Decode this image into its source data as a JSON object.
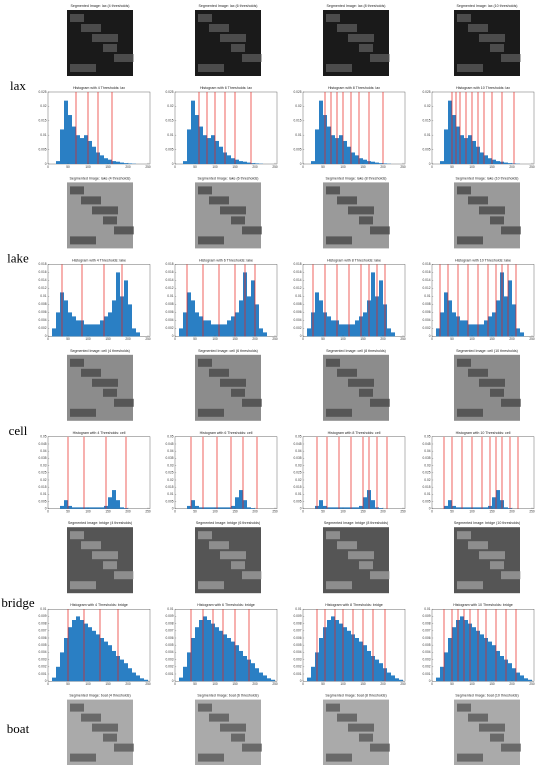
{
  "bar_color": "#2a7fc4",
  "threshold_color": "#e8201a",
  "rows": [
    {
      "label": "lax",
      "images": [
        "Segmented Image: lax (4 thresholds)",
        "Segmented Image: lax (6 thresholds)",
        "Segmented Image: lax (8 thresholds)",
        "Segmented Image: lax (10 thresholds)"
      ],
      "histogram": {
        "bins": [
          0,
          10,
          20,
          30,
          40,
          50,
          60,
          70,
          80,
          90,
          100,
          110,
          120,
          130,
          140,
          150,
          160,
          170,
          180,
          190,
          200,
          210,
          220,
          230,
          240,
          250
        ],
        "counts": [
          0,
          0,
          0.001,
          0.012,
          0.022,
          0.017,
          0.013,
          0.01,
          0.009,
          0.01,
          0.008,
          0.006,
          0.004,
          0.003,
          0.002,
          0.0015,
          0.001,
          0.0008,
          0.0005,
          0.0003,
          0.0002,
          0.0001,
          0,
          0,
          0
        ],
        "xlim": [
          0,
          255
        ],
        "xticks": [
          0,
          50,
          100,
          150,
          200,
          250
        ],
        "ylim": [
          0,
          0.025
        ],
        "yticks": [
          0,
          0.005,
          0.01,
          0.015,
          0.02,
          0.025
        ]
      },
      "panels": [
        {
          "title": "Histogram with 4 Thresholds: lax",
          "thresholds": [
            70,
            100,
            125,
            160
          ]
        },
        {
          "title": "Histogram with 6 Thresholds: lax",
          "thresholds": [
            60,
            80,
            100,
            125,
            150,
            190
          ]
        },
        {
          "title": "Histogram with 8 Thresholds: lax",
          "thresholds": [
            55,
            70,
            85,
            100,
            120,
            140,
            165,
            200
          ]
        },
        {
          "title": "Histogram with 10 Thresholds: lax",
          "thresholds": [
            50,
            60,
            70,
            85,
            100,
            115,
            130,
            150,
            175,
            205
          ]
        }
      ]
    },
    {
      "label": "lake",
      "images": [
        "Segmented Image: lake (4 thresholds)",
        "Segmented Image: lake (6 thresholds)",
        "Segmented Image: lake (8 thresholds)",
        "Segmented Image: lake (10 thresholds)"
      ],
      "histogram": {
        "bins": [
          0,
          10,
          20,
          30,
          40,
          50,
          60,
          70,
          80,
          90,
          100,
          110,
          120,
          130,
          140,
          150,
          160,
          170,
          180,
          190,
          200,
          210,
          220,
          230,
          240,
          250
        ],
        "counts": [
          0,
          0.002,
          0.006,
          0.011,
          0.009,
          0.006,
          0.005,
          0.004,
          0.004,
          0.003,
          0.003,
          0.003,
          0.003,
          0.004,
          0.005,
          0.006,
          0.009,
          0.016,
          0.01,
          0.014,
          0.008,
          0.002,
          0.001,
          0,
          0
        ],
        "xlim": [
          0,
          255
        ],
        "xticks": [
          0,
          50,
          100,
          150,
          200,
          250
        ],
        "ylim": [
          0,
          0.018
        ],
        "yticks": [
          0,
          0.002,
          0.004,
          0.006,
          0.008,
          0.01,
          0.012,
          0.014,
          0.016,
          0.018
        ]
      },
      "panels": [
        {
          "title": "Histogram with 4 Thresholds: lake",
          "thresholds": [
            35,
            85,
            140,
            185
          ]
        },
        {
          "title": "Histogram with 6 Thresholds: lake",
          "thresholds": [
            30,
            70,
            110,
            150,
            175,
            200
          ]
        },
        {
          "title": "Histogram with 8 Thresholds: lake",
          "thresholds": [
            25,
            55,
            85,
            115,
            145,
            165,
            185,
            205
          ]
        },
        {
          "title": "Histogram with 10 Thresholds: lake",
          "thresholds": [
            20,
            40,
            65,
            90,
            115,
            140,
            160,
            175,
            190,
            210
          ]
        }
      ]
    },
    {
      "label": "cell",
      "images": [
        "Segmented Image: cell (4 thresholds)",
        "Segmented Image: cell (6 thresholds)",
        "Segmented Image: cell (8 thresholds)",
        "Segmented Image: cell (10 thresholds)"
      ],
      "histogram": {
        "bins": [
          0,
          10,
          20,
          30,
          40,
          50,
          60,
          70,
          80,
          90,
          100,
          110,
          120,
          130,
          140,
          150,
          160,
          170,
          180,
          190,
          200,
          210,
          220,
          230,
          240,
          250
        ],
        "counts": [
          0,
          0,
          0,
          0.002,
          0.006,
          0.002,
          0.001,
          0.001,
          0.001,
          0.001,
          0.001,
          0.001,
          0.001,
          0.001,
          0.002,
          0.008,
          0.013,
          0.006,
          0.001,
          0.0005,
          0,
          0,
          0,
          0,
          0
        ],
        "xlim": [
          0,
          255
        ],
        "xticks": [
          0,
          50,
          100,
          150,
          200,
          250
        ],
        "ylim": [
          0,
          0.05
        ],
        "yticks": [
          0,
          0.005,
          0.01,
          0.015,
          0.02,
          0.025,
          0.03,
          0.035,
          0.04,
          0.045,
          0.05
        ]
      },
      "panels": [
        {
          "title": "Histogram with 4 Thresholds: cell",
          "thresholds": [
            50,
            90,
            145,
            195
          ]
        },
        {
          "title": "Histogram with 6 Thresholds: cell",
          "thresholds": [
            40,
            70,
            105,
            140,
            170,
            205
          ]
        },
        {
          "title": "Histogram with 8 Thresholds: cell",
          "thresholds": [
            35,
            60,
            90,
            120,
            150,
            165,
            185,
            210
          ]
        },
        {
          "title": "Histogram with 10 Thresholds: cell",
          "thresholds": [
            30,
            50,
            75,
            100,
            125,
            145,
            160,
            175,
            195,
            215
          ]
        }
      ]
    },
    {
      "label": "bridge",
      "images": [
        "Segmented Image: bridge (4 thresholds)",
        "Segmented Image: bridge (6 thresholds)",
        "Segmented Image: bridge (8 thresholds)",
        "Segmented Image: bridge (10 thresholds)"
      ],
      "histogram": {
        "bins": [
          0,
          10,
          20,
          30,
          40,
          50,
          60,
          70,
          80,
          90,
          100,
          110,
          120,
          130,
          140,
          150,
          160,
          170,
          180,
          190,
          200,
          210,
          220,
          230,
          240,
          250
        ],
        "counts": [
          0,
          0.0005,
          0.002,
          0.004,
          0.006,
          0.0075,
          0.0085,
          0.009,
          0.0085,
          0.008,
          0.0075,
          0.007,
          0.0065,
          0.006,
          0.0055,
          0.005,
          0.0042,
          0.0035,
          0.003,
          0.0025,
          0.0018,
          0.0012,
          0.0008,
          0.0004,
          0.0002
        ],
        "xlim": [
          0,
          255
        ],
        "xticks": [
          0,
          50,
          100,
          150,
          200,
          250
        ],
        "ylim": [
          0,
          0.01
        ],
        "yticks": [
          0,
          0.001,
          0.002,
          0.003,
          0.004,
          0.005,
          0.006,
          0.007,
          0.008,
          0.009,
          0.01
        ]
      },
      "panels": [
        {
          "title": "Histogram with 4 Thresholds: bridge",
          "thresholds": [
            50,
            90,
            130,
            175
          ]
        },
        {
          "title": "Histogram with 6 Thresholds: bridge",
          "thresholds": [
            40,
            70,
            95,
            120,
            150,
            185
          ]
        },
        {
          "title": "Histogram with 8 Thresholds: bridge",
          "thresholds": [
            35,
            55,
            80,
            100,
            125,
            150,
            175,
            205
          ]
        },
        {
          "title": "Histogram with 10 Thresholds: bridge",
          "thresholds": [
            30,
            50,
            65,
            80,
            95,
            115,
            135,
            160,
            185,
            210
          ]
        }
      ]
    },
    {
      "label": "boat",
      "images": [
        "Segmented Image: boat (4 thresholds)",
        "Segmented Image: boat (6 thresholds)",
        "Segmented Image: boat (8 thresholds)",
        "Segmented Image: boat (10 thresholds)"
      ]
    }
  ]
}
